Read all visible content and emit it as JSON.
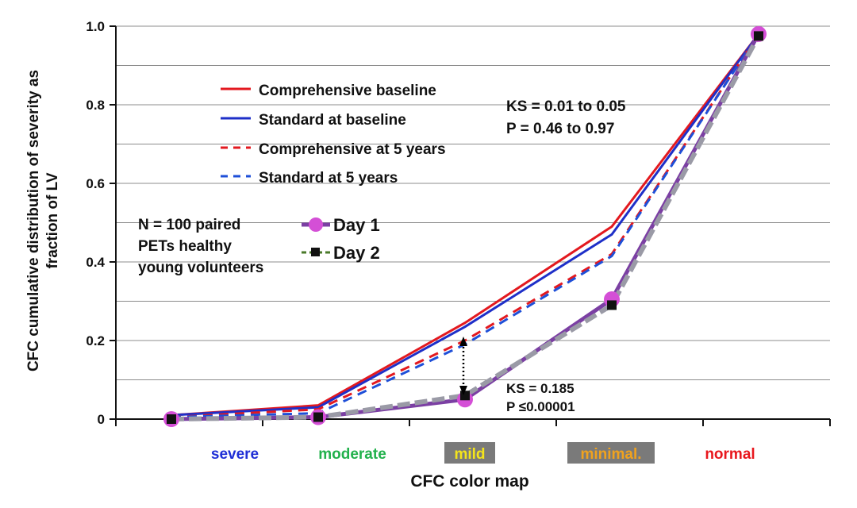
{
  "chart_data": {
    "type": "line",
    "xlabel": "CFC color map",
    "ylabel_line1": "CFC cumulative distribution of severity as",
    "ylabel_line2": "fraction of LV",
    "ylim": [
      0,
      1.0
    ],
    "yticks": [
      "0",
      "0.2",
      "0.4",
      "0.6",
      "0.8",
      "1.0"
    ],
    "grid": true,
    "categories": [
      {
        "label": "severe",
        "color": "#1f2fd6",
        "bg": ""
      },
      {
        "label": "moderate",
        "color": "#22b14c",
        "bg": ""
      },
      {
        "label": "mild",
        "color": "#f5e51b",
        "bg": "#7a7a7a"
      },
      {
        "label": "minimal.",
        "color": "#f0a21e",
        "bg": "#7a7a7a"
      },
      {
        "label": "normal",
        "color": "#e8171d",
        "bg": ""
      }
    ],
    "series": [
      {
        "name": "Comprehensive baseline",
        "color": "#e3191f",
        "dash": "solid",
        "values": [
          0.01,
          0.035,
          0.245,
          0.49,
          0.98
        ]
      },
      {
        "name": "Standard at baseline",
        "color": "#1e2fc8",
        "dash": "solid",
        "values": [
          0.01,
          0.03,
          0.235,
          0.47,
          0.98
        ]
      },
      {
        "name": "Comprehensive at 5 years",
        "color": "#e3191f",
        "dash": "dashed",
        "values": [
          0.005,
          0.025,
          0.2,
          0.42,
          0.98
        ]
      },
      {
        "name": "Standard at 5 years",
        "color": "#1e4fd8",
        "dash": "dashed",
        "values": [
          0.005,
          0.015,
          0.19,
          0.415,
          0.98
        ]
      },
      {
        "name": "Day 1",
        "color": "#7b3fa3",
        "marker_color": "#d44fd6",
        "marker": "circle",
        "values": [
          0.0,
          0.005,
          0.05,
          0.305,
          0.98
        ]
      },
      {
        "name": "Day 2",
        "color": "#9a9aa6",
        "line_color2": "#4a7a2a",
        "marker_color": "#111111",
        "marker": "square",
        "values": [
          0.0,
          0.005,
          0.06,
          0.29,
          0.975
        ]
      }
    ],
    "annotations": {
      "ks_top_line1": "KS = 0.01 to 0.05",
      "ks_top_line2": "P = 0.46 to 0.97",
      "ks_bottom_line1": "KS = 0.185",
      "ks_bottom_line2": "P ≤0.00001",
      "n_line1": "N = 100 paired",
      "n_line2": "PETs healthy",
      "n_line3": "young volunteers"
    }
  }
}
